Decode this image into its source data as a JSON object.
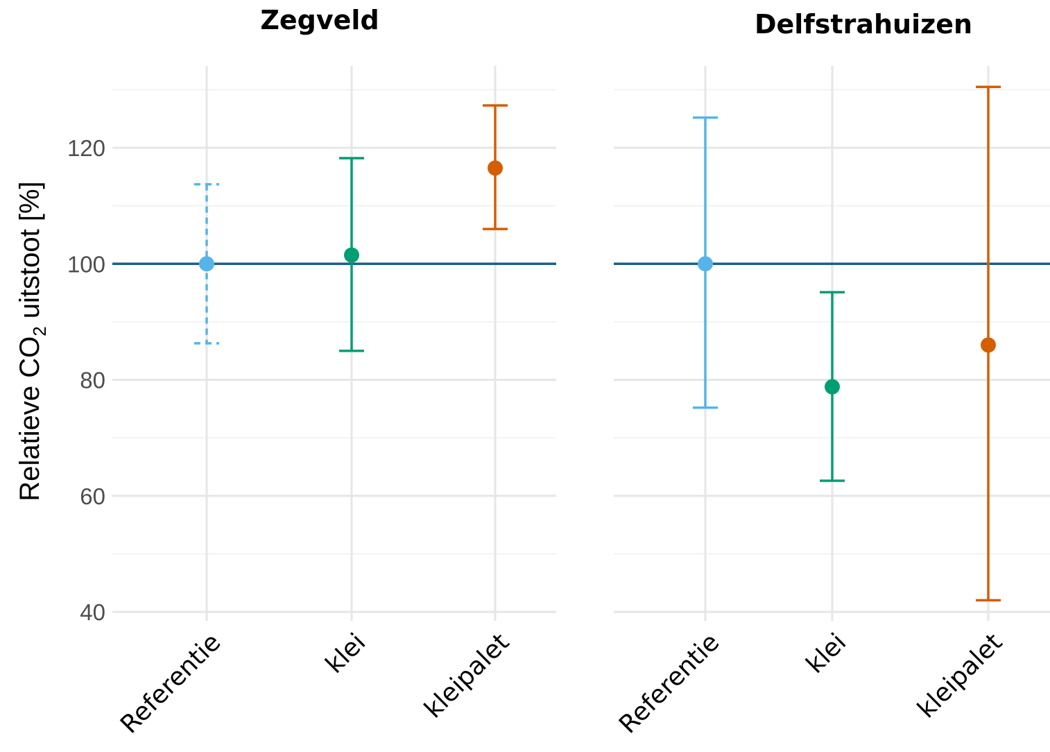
{
  "chart_data": [
    {
      "type": "errorbar",
      "title": "Zegveld",
      "ylabel_main": "Relatieve CO",
      "ylabel_sub": "2",
      "ylabel_rest": " uitstoot [%]",
      "ylim": [
        38,
        133
      ],
      "yticks": [
        "40",
        "60",
        "80",
        "100",
        "120"
      ],
      "reference_line": 100,
      "categories": [
        "Referentie",
        "klei",
        "kleipalet"
      ],
      "points": [
        {
          "category": "Referentie",
          "value": 100,
          "lower": 86.3,
          "upper": 113.7,
          "color": "#56b4e9",
          "dashed": true
        },
        {
          "category": "klei",
          "value": 101.5,
          "lower": 85,
          "upper": 118.2,
          "color": "#009e73",
          "dashed": false
        },
        {
          "category": "kleipalet",
          "value": 116.5,
          "lower": 106,
          "upper": 127.3,
          "color": "#d55e00",
          "dashed": false
        }
      ]
    },
    {
      "type": "errorbar",
      "title": "Delfstrahuizen",
      "ylim": [
        38,
        133
      ],
      "reference_line": 100,
      "categories": [
        "Referentie",
        "klei",
        "kleipalet"
      ],
      "points": [
        {
          "category": "Referentie",
          "value": 100,
          "lower": 75.2,
          "upper": 125.2,
          "color": "#56b4e9",
          "dashed": false
        },
        {
          "category": "klei",
          "value": 78.8,
          "lower": 62.6,
          "upper": 95.1,
          "color": "#009e73",
          "dashed": false
        },
        {
          "category": "kleipalet",
          "value": 86,
          "lower": 42,
          "upper": 130.5,
          "color": "#d55e00",
          "dashed": false
        }
      ]
    }
  ]
}
